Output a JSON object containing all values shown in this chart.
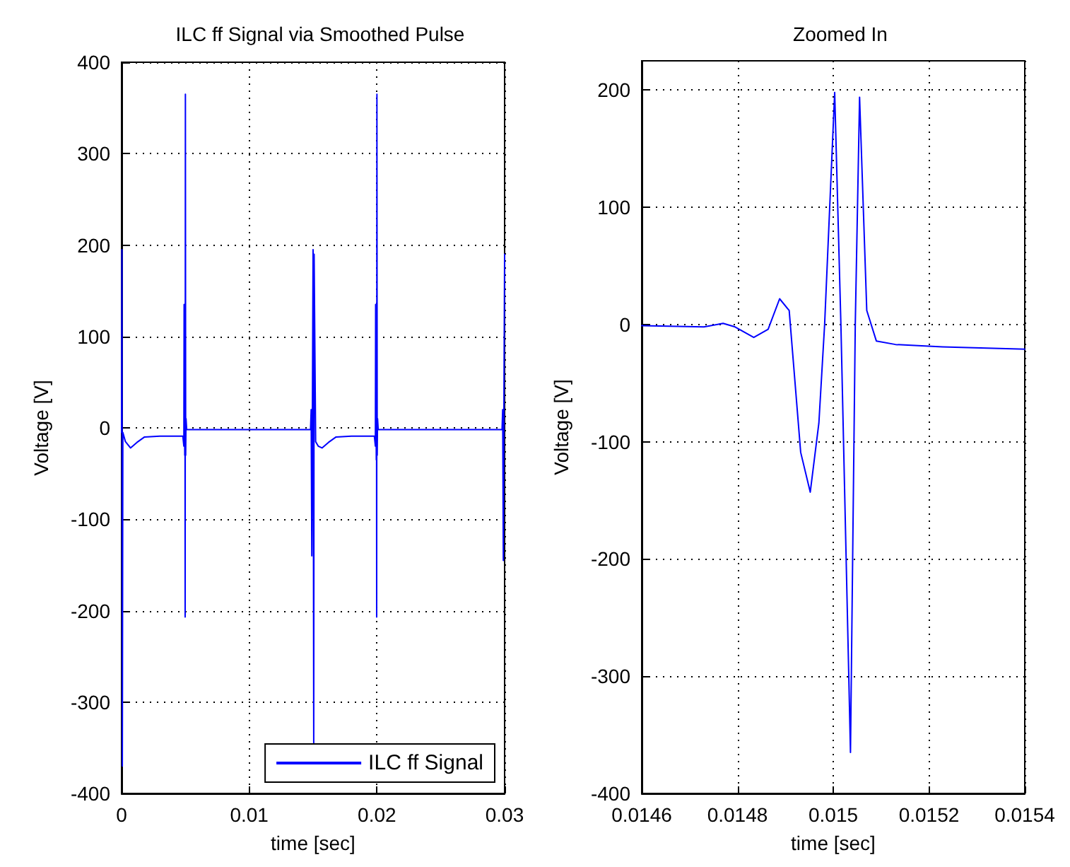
{
  "chart_data": [
    {
      "type": "line",
      "title": "ILC ff Signal via Smoothed Pulse",
      "xlabel": "time [sec]",
      "ylabel": "Voltage [V]",
      "xlim": [
        0,
        0.03
      ],
      "xticks": [
        0,
        0.01,
        0.02,
        0.03
      ],
      "ylim": [
        -400,
        400
      ],
      "yticks": [
        -400,
        -300,
        -200,
        -100,
        0,
        100,
        200,
        300,
        400
      ],
      "grid": true,
      "legend": "bottom right",
      "marker": "none",
      "line_style": "solid",
      "series": [
        {
          "name": "ILC ff Signal",
          "color": "#0000ff",
          "x": [
            0,
            3e-05,
            6e-05,
            0.0001,
            0.0003,
            0.0007,
            0.0012,
            0.0018,
            0.003,
            0.0048,
            0.00488,
            0.0049,
            0.00495,
            0.00497,
            0.00498,
            0.005,
            0.00502,
            0.00505,
            0.0051,
            0.0148,
            0.01485,
            0.0149,
            0.015,
            0.01505,
            0.01508,
            0.0152,
            0.0154,
            0.0157,
            0.0162,
            0.0168,
            0.018,
            0.0198,
            0.01988,
            0.0199,
            0.01995,
            0.01997,
            0.01998,
            0.02,
            0.02002,
            0.02005,
            0.0201,
            0.0298,
            0.02985,
            0.0299,
            0.02995,
            0.03
          ],
          "values": [
            -5,
            195,
            -370,
            -5,
            -15,
            -22,
            -16,
            -10,
            -9,
            -9,
            -20,
            135,
            -30,
            40,
            -207,
            365,
            -30,
            10,
            -2,
            -2,
            20,
            -140,
            195,
            -345,
            190,
            -15,
            -20,
            -22,
            -16,
            -10,
            -9,
            -9,
            -20,
            135,
            -35,
            40,
            -207,
            365,
            -30,
            10,
            -2,
            -2,
            20,
            -145,
            40,
            190
          ]
        }
      ]
    },
    {
      "type": "line",
      "title": "Zoomed In",
      "xlabel": "time [sec]",
      "ylabel": "Voltage [V]",
      "xlim": [
        0.0146,
        0.0154
      ],
      "xticks": [
        0.0146,
        0.0148,
        0.015,
        0.0152,
        0.0154
      ],
      "ylim": [
        -400,
        225
      ],
      "yticks": [
        -400,
        -300,
        -200,
        -100,
        0,
        100,
        200
      ],
      "grid": true,
      "marker": "none",
      "line_style": "solid",
      "series": [
        {
          "color": "#0000ff",
          "x": [
            0.0146,
            0.01473,
            0.01477,
            0.014795,
            0.014834,
            0.014864,
            0.014888,
            0.014908,
            0.014932,
            0.014952,
            0.01497,
            0.014982,
            0.015003,
            0.015016,
            0.015036,
            0.015046,
            0.015055,
            0.01507,
            0.01509,
            0.01513,
            0.015228,
            0.0154
          ],
          "values": [
            -1,
            -2,
            1,
            -2,
            -11,
            -4,
            22,
            12,
            -109,
            -143,
            -84,
            0,
            198,
            0,
            -365,
            0,
            194,
            12,
            -14,
            -17,
            -19,
            -21
          ]
        }
      ]
    }
  ]
}
